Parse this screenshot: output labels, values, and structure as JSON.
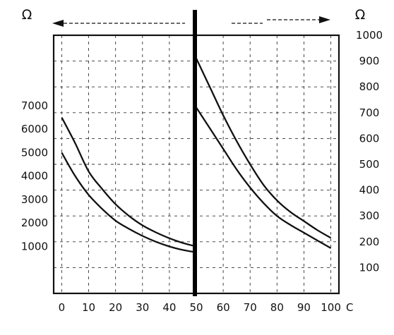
{
  "chart_data": {
    "type": "line",
    "unit_left": "Ω",
    "unit_right": "Ω",
    "x_unit": "C",
    "x_ticks": [
      "0",
      "10",
      "20",
      "30",
      "40",
      "50",
      "60",
      "70",
      "80",
      "90",
      "100"
    ],
    "y_left_ticks": [
      "1000",
      "2000",
      "3000",
      "4000",
      "5000",
      "6000",
      "7000"
    ],
    "y_right_ticks": [
      "100",
      "200",
      "300",
      "400",
      "500",
      "600",
      "700",
      "800",
      "900",
      "1000"
    ],
    "xlim": [
      -3,
      103
    ],
    "y_left_lim": [
      -1000,
      10000
    ],
    "y_right_lim": [
      0,
      1000
    ],
    "grid": true,
    "left_panel": {
      "axis": "left",
      "x_range": [
        0,
        50
      ],
      "series": [
        {
          "x": [
            0,
            5,
            10,
            15,
            20,
            25,
            30,
            35,
            40,
            45,
            50
          ],
          "values": [
            6500,
            5400,
            4200,
            3450,
            2800,
            2300,
            1900,
            1600,
            1350,
            1150,
            1000
          ]
        },
        {
          "x": [
            0,
            5,
            10,
            15,
            20,
            25,
            30,
            35,
            40,
            45,
            50
          ],
          "values": [
            5000,
            4000,
            3200,
            2600,
            2100,
            1750,
            1450,
            1200,
            1000,
            850,
            750
          ]
        }
      ]
    },
    "right_panel": {
      "axis": "right",
      "x_range": [
        50,
        100
      ],
      "series": [
        {
          "x": [
            50,
            55,
            60,
            65,
            70,
            75,
            80,
            85,
            90,
            95,
            100
          ],
          "values": [
            910,
            800,
            690,
            590,
            500,
            420,
            360,
            315,
            280,
            245,
            215
          ]
        },
        {
          "x": [
            50,
            55,
            60,
            65,
            70,
            75,
            80,
            85,
            90,
            95,
            100
          ],
          "values": [
            720,
            640,
            560,
            480,
            410,
            350,
            300,
            265,
            235,
            205,
            175
          ]
        }
      ]
    }
  }
}
